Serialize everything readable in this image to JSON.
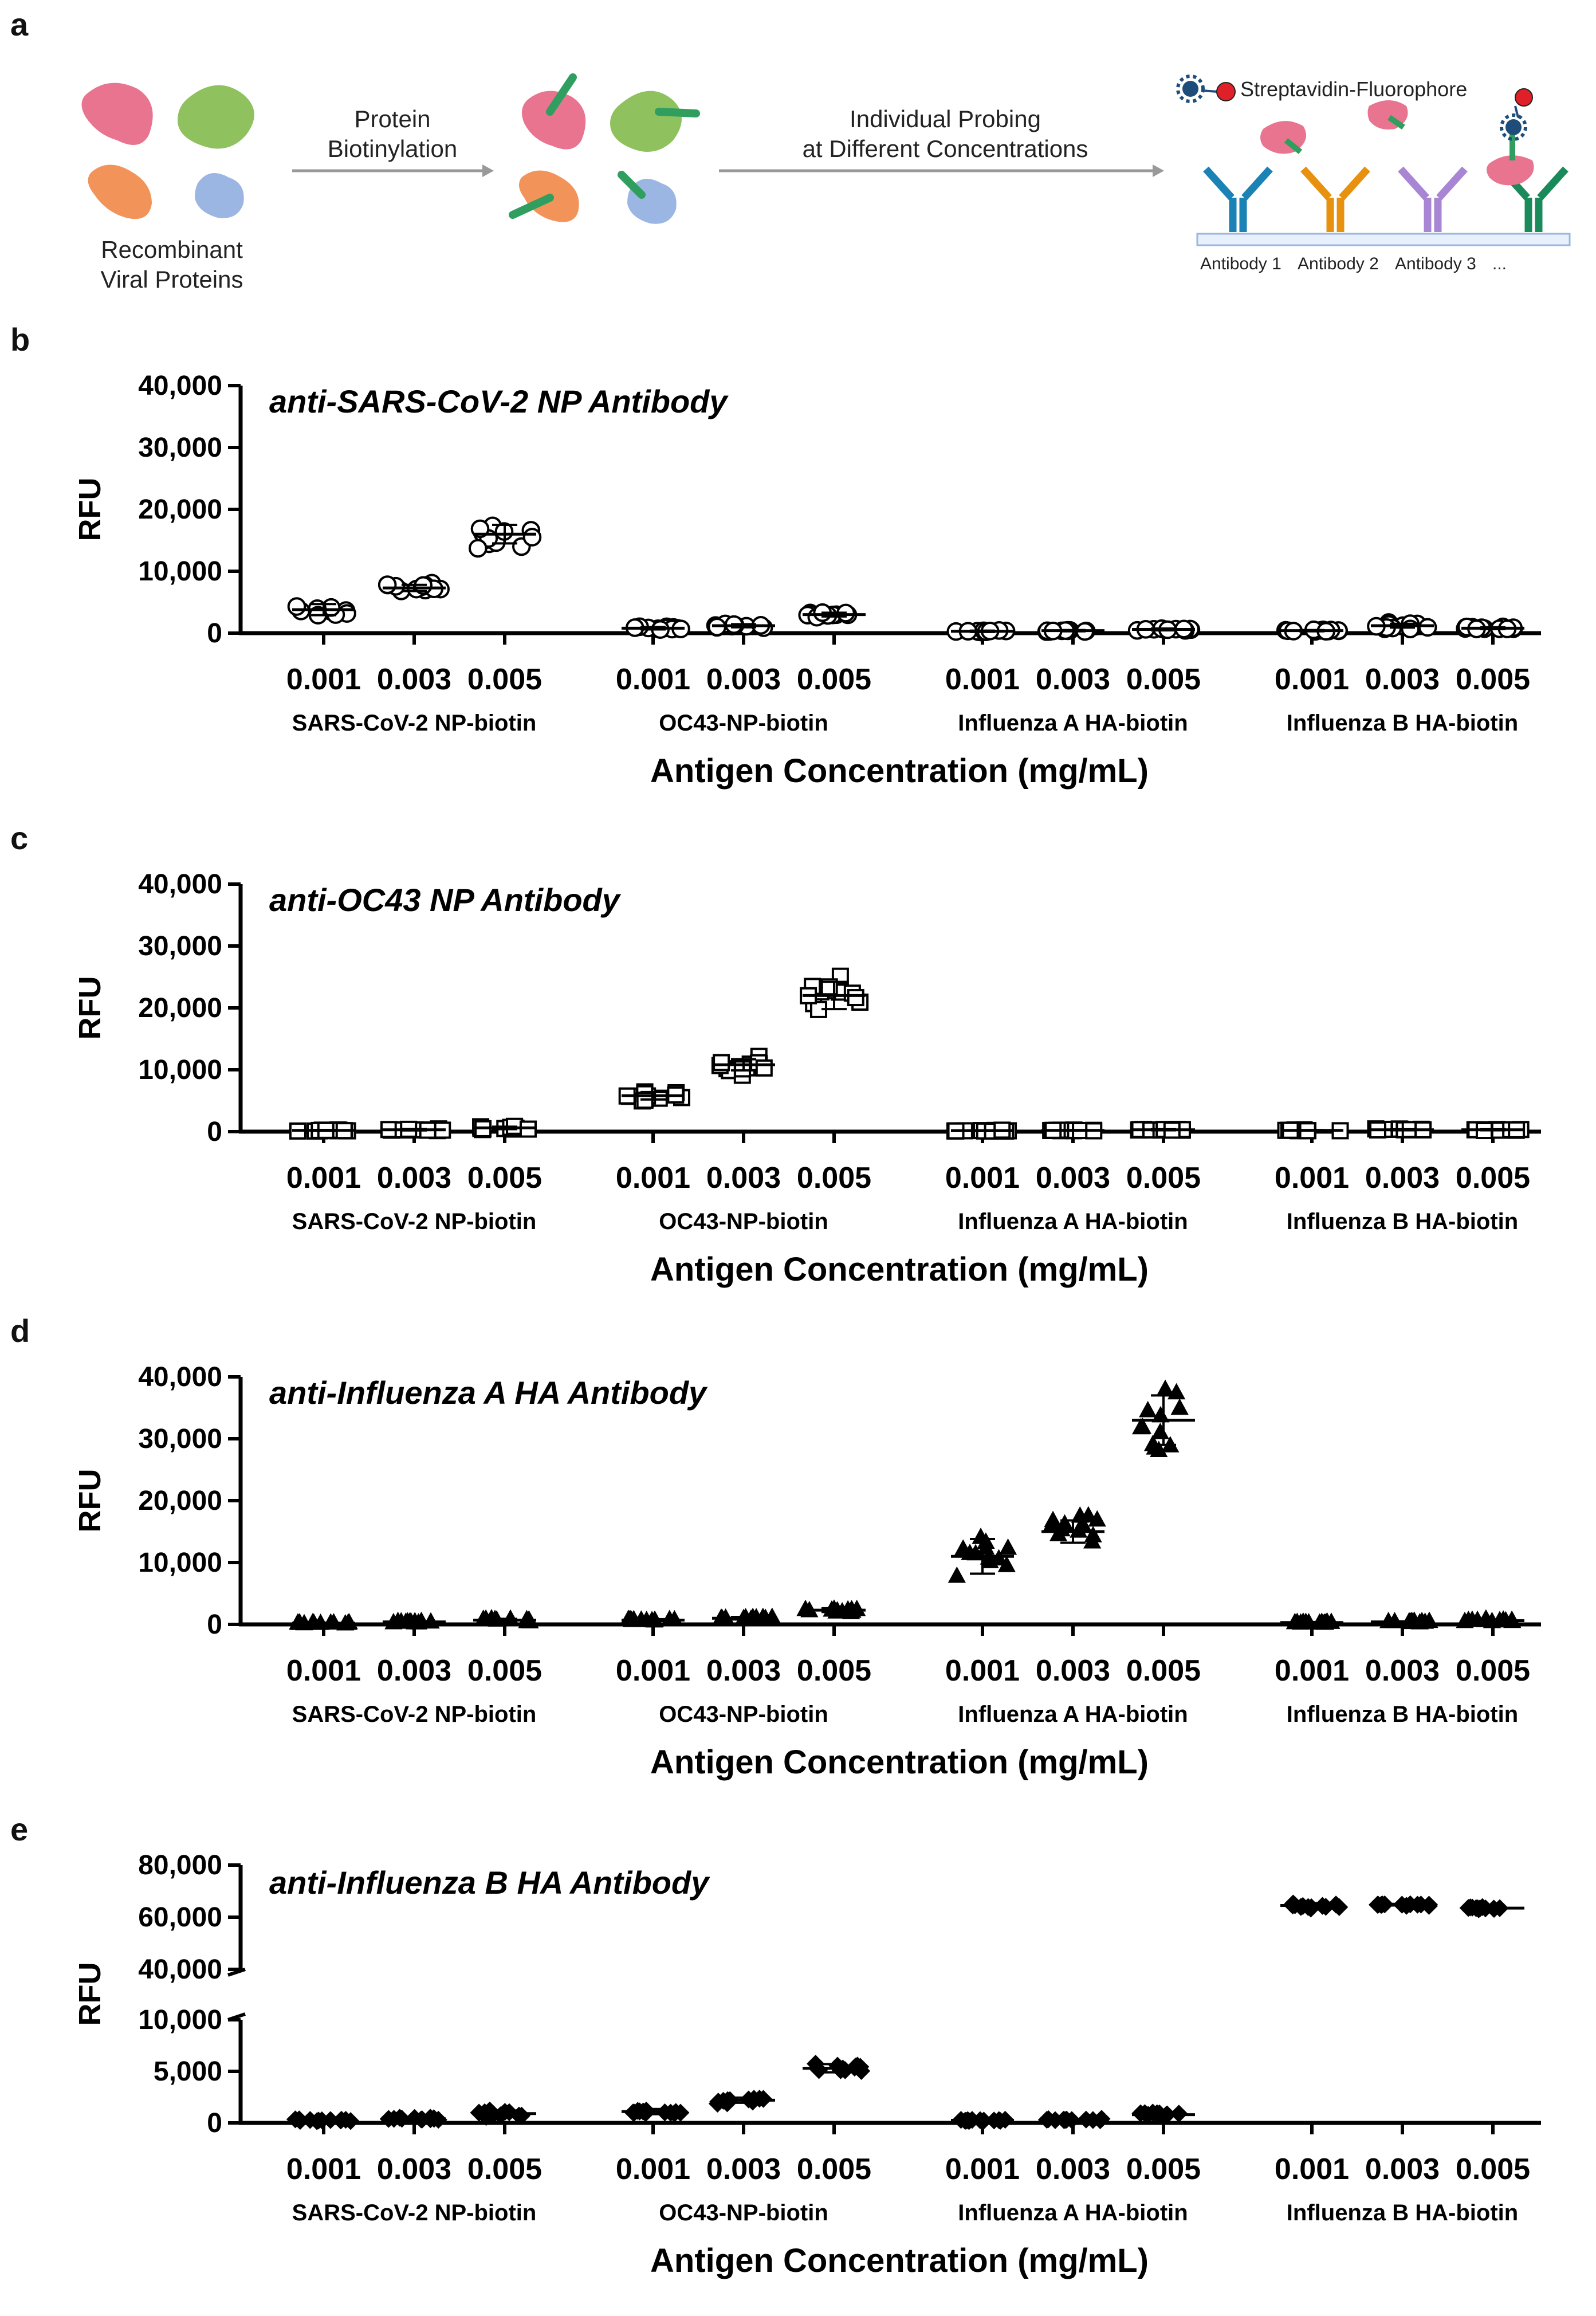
{
  "panel_letters": [
    "a",
    "b",
    "c",
    "d",
    "e"
  ],
  "schematic": {
    "left_label_line1": "Recombinant",
    "left_label_line2": "Viral Proteins",
    "step1_line1": "Protein",
    "step1_line2": "Biotinylation",
    "step2_line1": "Individual Probing",
    "step2_line2": "at Different Concentrations",
    "probe_label": "Streptavidin-Fluorophore",
    "antibody_labels": [
      "Antibody 1",
      "Antibody 2",
      "Antibody 3",
      "..."
    ],
    "colors": {
      "pink": "#e8748f",
      "green": "#8fc15e",
      "orange": "#f2945a",
      "blue": "#9bb6e3",
      "biotin": "#2f9e5e",
      "ab1": "#1b82b5",
      "ab2": "#e8910f",
      "ab3": "#a886d4",
      "ab4": "#1a8a5b",
      "fluor": "#e02028",
      "strep": "#1e4d7a"
    }
  },
  "chart_data": [
    {
      "type": "scatter",
      "subtype": "dot-plot-with-mean-sd",
      "title": "anti-SARS-CoV-2 NP Antibody",
      "ylabel": "RFU",
      "xlabel": "Antigen Concentration (mg/mL)",
      "ylim": [
        0,
        40000
      ],
      "yticks": [
        0,
        10000,
        20000,
        30000,
        40000
      ],
      "ytick_labels": [
        "0",
        "10,000",
        "20,000",
        "30,000",
        "40,000"
      ],
      "marker": "circle",
      "categories": [
        "0.001",
        "0.003",
        "0.005"
      ],
      "groups": [
        {
          "name": "SARS-CoV-2 NP-biotin",
          "means": [
            3800,
            7300,
            16000
          ],
          "sds": [
            900,
            500,
            1500
          ]
        },
        {
          "name": "OC43-NP-biotin",
          "means": [
            800,
            1200,
            3000
          ],
          "sds": [
            200,
            250,
            300
          ]
        },
        {
          "name": "Influenza A HA-biotin",
          "means": [
            300,
            400,
            600
          ],
          "sds": [
            100,
            100,
            150
          ]
        },
        {
          "name": "Influenza B HA-biotin",
          "means": [
            400,
            1200,
            800
          ],
          "sds": [
            100,
            300,
            150
          ]
        }
      ]
    },
    {
      "type": "scatter",
      "subtype": "dot-plot-with-mean-sd",
      "title": "anti-OC43 NP Antibody",
      "ylabel": "RFU",
      "xlabel": "Antigen Concentration (mg/mL)",
      "ylim": [
        0,
        40000
      ],
      "yticks": [
        0,
        10000,
        20000,
        30000,
        40000
      ],
      "ytick_labels": [
        "0",
        "10,000",
        "20,000",
        "30,000",
        "40,000"
      ],
      "marker": "square",
      "categories": [
        "0.001",
        "0.003",
        "0.005"
      ],
      "groups": [
        {
          "name": "SARS-CoV-2 NP-biotin",
          "means": [
            200,
            300,
            600
          ],
          "sds": [
            80,
            100,
            200
          ]
        },
        {
          "name": "OC43-NP-biotin",
          "means": [
            5800,
            10800,
            22000
          ],
          "sds": [
            600,
            900,
            2200
          ]
        },
        {
          "name": "Influenza A HA-biotin",
          "means": [
            150,
            200,
            300
          ],
          "sds": [
            50,
            60,
            80
          ]
        },
        {
          "name": "Influenza B HA-biotin",
          "means": [
            200,
            300,
            300
          ],
          "sds": [
            60,
            80,
            80
          ]
        }
      ]
    },
    {
      "type": "scatter",
      "subtype": "dot-plot-with-mean-sd",
      "title": "anti-Influenza A HA Antibody",
      "ylabel": "RFU",
      "xlabel": "Antigen Concentration (mg/mL)",
      "ylim": [
        0,
        40000
      ],
      "yticks": [
        0,
        10000,
        20000,
        30000,
        40000
      ],
      "ytick_labels": [
        "0",
        "10,000",
        "20,000",
        "30,000",
        "40,000"
      ],
      "marker": "triangle",
      "categories": [
        "0.001",
        "0.003",
        "0.005"
      ],
      "groups": [
        {
          "name": "SARS-CoV-2 NP-biotin",
          "means": [
            200,
            400,
            700
          ],
          "sds": [
            80,
            100,
            200
          ]
        },
        {
          "name": "OC43-NP-biotin",
          "means": [
            700,
            1000,
            2300
          ],
          "sds": [
            150,
            200,
            300
          ]
        },
        {
          "name": "Influenza A HA-biotin",
          "means": [
            11000,
            15000,
            33000
          ],
          "sds": [
            2800,
            1800,
            4000
          ]
        },
        {
          "name": "Influenza B HA-biotin",
          "means": [
            300,
            400,
            600
          ],
          "sds": [
            80,
            100,
            150
          ]
        }
      ]
    },
    {
      "type": "scatter",
      "subtype": "dot-plot-with-mean-sd",
      "title": "anti-Influenza B HA Antibody",
      "ylabel": "RFU",
      "xlabel": "Antigen Concentration (mg/mL)",
      "broken_axis": {
        "lower": [
          0,
          10000
        ],
        "upper": [
          40000,
          80000
        ]
      },
      "yticks": [
        0,
        5000,
        10000,
        40000,
        60000,
        80000
      ],
      "ytick_labels": [
        "0",
        "5,000",
        "10,000",
        "40,000",
        "60,000",
        "80,000"
      ],
      "marker": "diamond",
      "categories": [
        "0.001",
        "0.003",
        "0.005"
      ],
      "groups": [
        {
          "name": "SARS-CoV-2 NP-biotin",
          "means": [
            250,
            400,
            900
          ],
          "sds": [
            80,
            120,
            300
          ]
        },
        {
          "name": "OC43-NP-biotin",
          "means": [
            1100,
            2200,
            5300
          ],
          "sds": [
            250,
            250,
            400
          ]
        },
        {
          "name": "Influenza A HA-biotin",
          "means": [
            250,
            300,
            800
          ],
          "sds": [
            60,
            60,
            120
          ]
        },
        {
          "name": "Influenza B HA-biotin",
          "means": [
            64500,
            64800,
            63500
          ],
          "sds": [
            900,
            300,
            300
          ]
        }
      ]
    }
  ]
}
